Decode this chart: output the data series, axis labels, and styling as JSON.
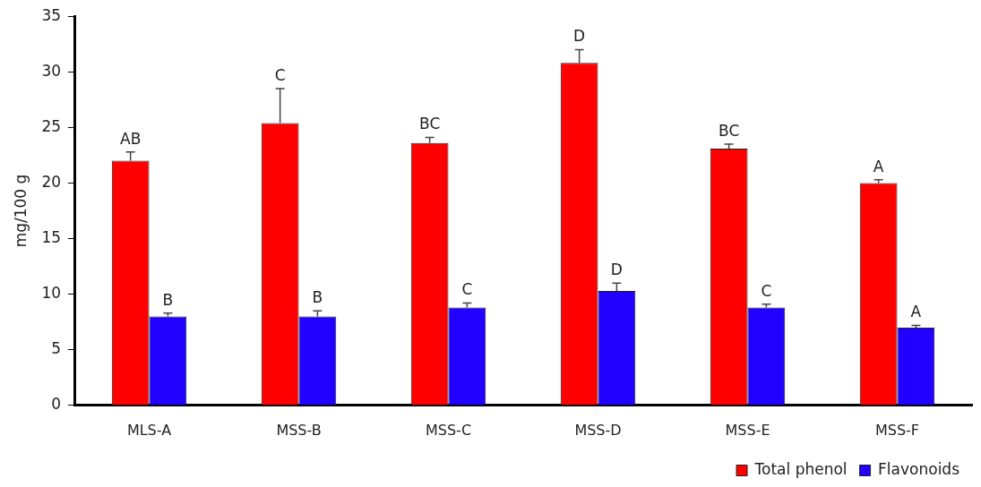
{
  "chart_data": {
    "type": "bar",
    "ylabel": "mg/100 g",
    "categories": [
      "MLS-A",
      "MSS-B",
      "MSS-C",
      "MSS-D",
      "MSS-E",
      "MSS-F"
    ],
    "series": [
      {
        "name": "Total phenol",
        "color": "#ff0000",
        "values": [
          22.0,
          25.4,
          23.6,
          30.8,
          23.1,
          20.0
        ],
        "errors": [
          0.8,
          3.1,
          0.5,
          1.2,
          0.4,
          0.3
        ],
        "value_labels": [
          "AB",
          "C",
          "BC",
          "D",
          "BC",
          "A"
        ]
      },
      {
        "name": "Flavonoids",
        "color": "#2200ff",
        "values": [
          8.0,
          8.0,
          8.8,
          10.3,
          8.8,
          7.0
        ],
        "errors": [
          0.3,
          0.5,
          0.4,
          0.7,
          0.3,
          0.2
        ],
        "value_labels": [
          "B",
          "B",
          "C",
          "D",
          "C",
          "A"
        ]
      }
    ],
    "ylim": [
      0,
      35
    ],
    "yticks": [
      0,
      5,
      10,
      15,
      20,
      25,
      30,
      35
    ],
    "grid": false,
    "legend": "bottom right"
  }
}
